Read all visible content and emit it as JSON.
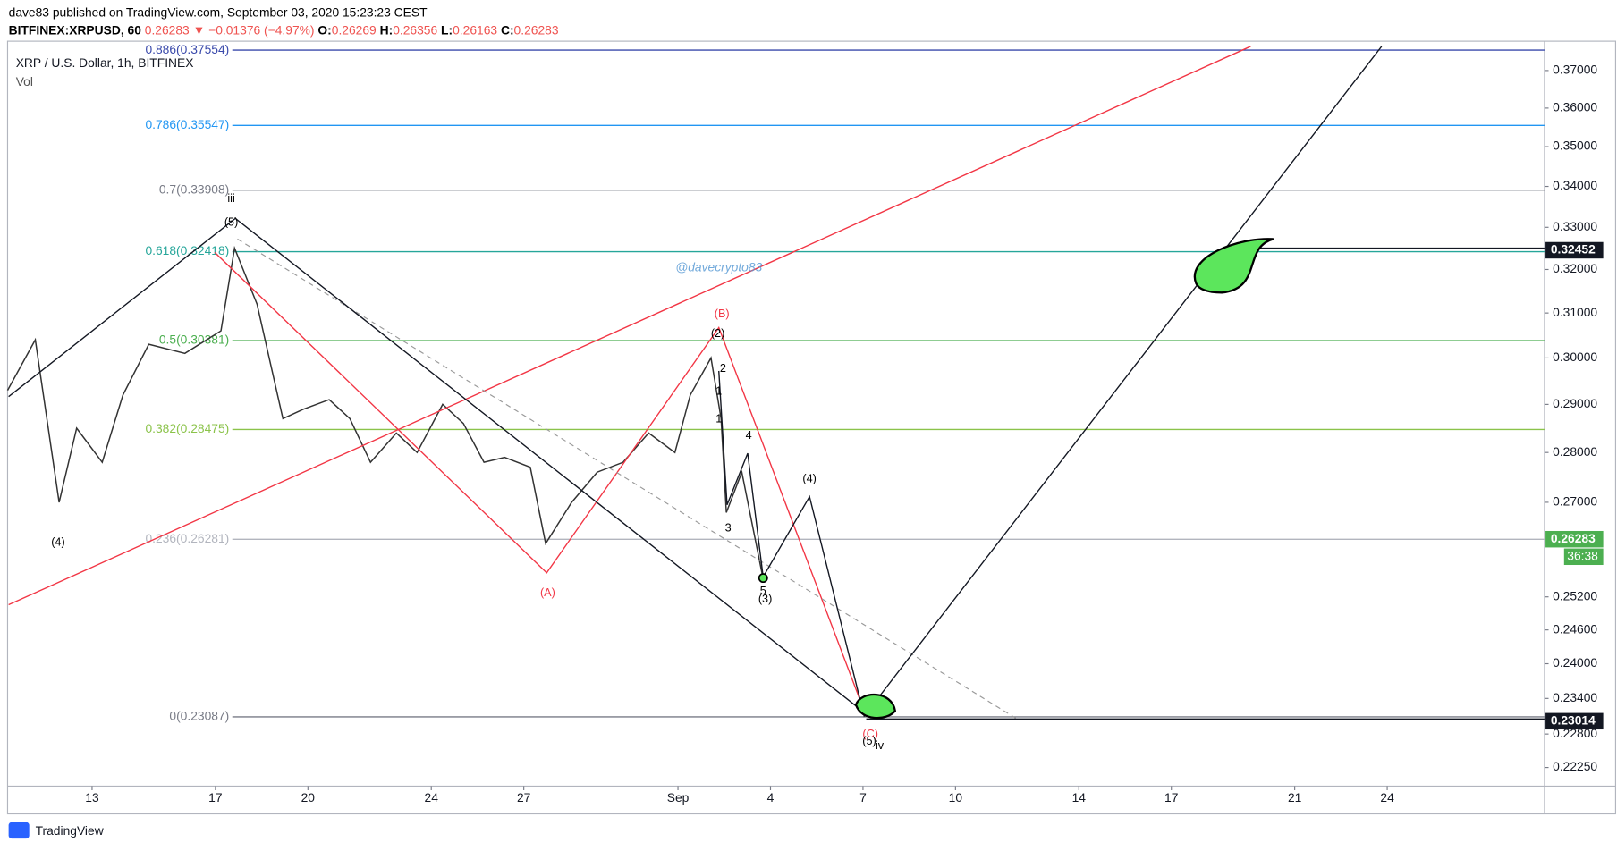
{
  "header": {
    "publisher": "dave83 published on TradingView.com, September 03, 2020 15:23:23 CEST",
    "symbol": "BITFINEX:XRPUSD, 60",
    "last": "0.26283",
    "change": "▼ −0.01376 (−4.97%)",
    "ohlc": [
      {
        "label": "O:",
        "value": "0.26269"
      },
      {
        "label": "H:",
        "value": "0.26356"
      },
      {
        "label": "L:",
        "value": "0.26163"
      },
      {
        "label": "C:",
        "value": "0.26283"
      }
    ]
  },
  "watermark": "@davecrypto83",
  "footer": "TradingView",
  "countdown": "36:38",
  "annotations": [
    "(4)",
    "iii",
    "(5)",
    "(B)",
    "(2)",
    "2",
    "1",
    "1",
    "4",
    "3",
    "(4)",
    "5",
    "(3)",
    "(A)",
    "(C)",
    "(5)",
    "iv"
  ],
  "chart_data": {
    "type": "line",
    "title": "XRP / U.S. Dollar, 1h, BITFINEX",
    "subtitle": "Vol",
    "log_scale": true,
    "xlim": [
      10.26,
      60.1
    ],
    "ylim": [
      0.2195,
      0.378
    ],
    "xticks": [
      {
        "value": 13,
        "label": "13"
      },
      {
        "value": 17,
        "label": "17"
      },
      {
        "value": 20,
        "label": "20"
      },
      {
        "value": 24,
        "label": "24"
      },
      {
        "value": 27,
        "label": "27"
      },
      {
        "value": 32,
        "label": "Sep"
      },
      {
        "value": 35,
        "label": "4"
      },
      {
        "value": 38,
        "label": "7"
      },
      {
        "value": 41,
        "label": "10"
      },
      {
        "value": 45,
        "label": "14"
      },
      {
        "value": 48,
        "label": "17"
      },
      {
        "value": 52,
        "label": "21"
      },
      {
        "value": 55,
        "label": "24"
      }
    ],
    "yticks": [
      {
        "value": 0.37,
        "label": "0.37000"
      },
      {
        "value": 0.36,
        "label": "0.36000"
      },
      {
        "value": 0.35,
        "label": "0.35000"
      },
      {
        "value": 0.34,
        "label": "0.34000"
      },
      {
        "value": 0.33,
        "label": "0.33000"
      },
      {
        "value": 0.32,
        "label": "0.32000"
      },
      {
        "value": 0.31,
        "label": "0.31000"
      },
      {
        "value": 0.3,
        "label": "0.30000"
      },
      {
        "value": 0.29,
        "label": "0.29000"
      },
      {
        "value": 0.28,
        "label": "0.28000"
      },
      {
        "value": 0.27,
        "label": "0.27000"
      },
      {
        "value": 0.252,
        "label": "0.25200"
      },
      {
        "value": 0.246,
        "label": "0.24600"
      },
      {
        "value": 0.24,
        "label": "0.24000"
      },
      {
        "value": 0.234,
        "label": "0.23400"
      },
      {
        "value": 0.228,
        "label": "0.22800"
      },
      {
        "value": 0.2225,
        "label": "0.22250"
      }
    ],
    "series": [
      {
        "name": "XRPUSD",
        "color": "#333333",
        "x": [
          10.26,
          11.16,
          11.93,
          12.5,
          13.33,
          14.0,
          14.84,
          16.01,
          17.18,
          17.62,
          18.35,
          19.19,
          19.86,
          20.69,
          21.36,
          22.03,
          22.87,
          23.54,
          24.37,
          25.04,
          25.71,
          26.38,
          27.21,
          27.71,
          28.55,
          29.38,
          30.22,
          31.05,
          31.9,
          32.4,
          33.07,
          33.4,
          33.57,
          34.07,
          34.74
        ],
        "values": [
          0.293,
          0.304,
          0.27,
          0.285,
          0.278,
          0.292,
          0.303,
          0.301,
          0.306,
          0.325,
          0.312,
          0.287,
          0.289,
          0.291,
          0.287,
          0.278,
          0.284,
          0.28,
          0.29,
          0.286,
          0.278,
          0.279,
          0.277,
          0.262,
          0.27,
          0.276,
          0.278,
          0.284,
          0.28,
          0.292,
          0.3,
          0.287,
          0.268,
          0.276,
          0.256
        ]
      }
    ],
    "fib_levels": [
      {
        "label": "0.886(0.37554)",
        "value": 0.37554,
        "color": "#3949ab"
      },
      {
        "label": "0.786(0.35547)",
        "value": 0.35547,
        "color": "#2196f3"
      },
      {
        "label": "0.7(0.33908)",
        "value": 0.33908,
        "color": "#787b86"
      },
      {
        "label": "0.618(0.32418)",
        "value": 0.32418,
        "color": "#26a69a"
      },
      {
        "label": "0.5(0.30381)",
        "value": 0.30381,
        "color": "#4caf50"
      },
      {
        "label": "0.382(0.28475)",
        "value": 0.28475,
        "color": "#8bc34a"
      },
      {
        "label": "0.236(0.26281)",
        "value": 0.26281,
        "color": "#b2b5be"
      },
      {
        "label": "0(0.23087)",
        "value": 0.23087,
        "color": "#787b86"
      }
    ],
    "price_labels": [
      {
        "value": 0.32452,
        "label": "0.32452",
        "color": "#131722"
      },
      {
        "value": 0.26283,
        "label": "0.26283",
        "color": "#4caf50"
      },
      {
        "value": 0.23014,
        "label": "0.23014",
        "color": "#131722"
      }
    ]
  }
}
